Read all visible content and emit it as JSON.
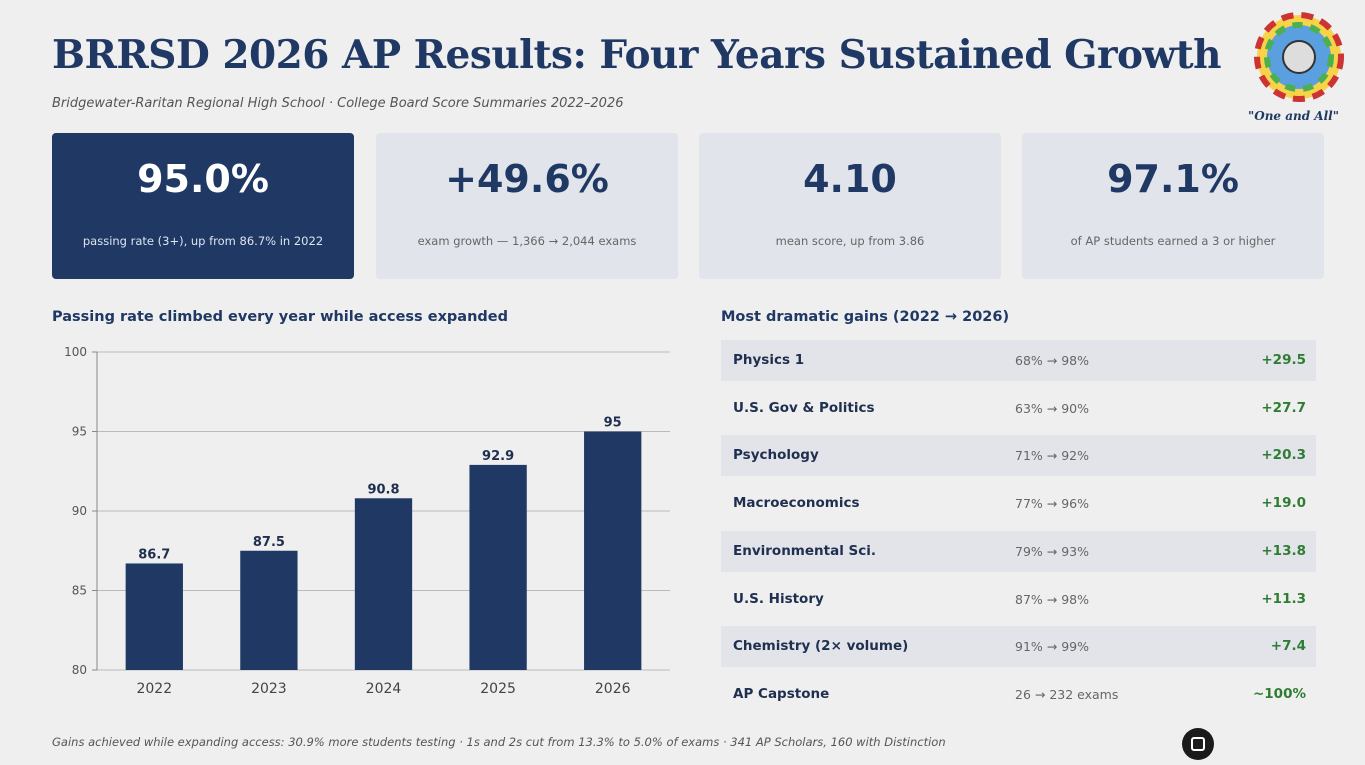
{
  "header": {
    "title": "BRRSD 2026 AP Results: Four Years Sustained Growth",
    "subtitle": "Bridgewater-Raritan Regional High School · College Board Score Summaries 2022–2026",
    "motto": "\"One and All\""
  },
  "cards": [
    {
      "value": "95.0%",
      "label": "passing rate (3+), up from 86.7% in 2022"
    },
    {
      "value": "+49.6%",
      "label": "exam growth — 1,366 → 2,044 exams"
    },
    {
      "value": "4.10",
      "label": "mean score, up from 3.86"
    },
    {
      "value": "97.1%",
      "label": "of AP students earned a 3 or higher"
    }
  ],
  "chart_data": {
    "type": "bar",
    "title": "Passing rate climbed every year while access expanded",
    "categories": [
      "2022",
      "2023",
      "2024",
      "2025",
      "2026"
    ],
    "values": [
      86.7,
      87.5,
      90.8,
      92.9,
      95
    ],
    "color": "#1f3864",
    "ylim": [
      80,
      100
    ],
    "yticks": [
      80,
      85,
      90,
      95,
      100
    ],
    "grid": true
  },
  "table": {
    "title": "Most dramatic gains (2022 → 2026)",
    "rows": [
      [
        "Physics 1",
        "68% → 98%",
        "+29.5"
      ],
      [
        "U.S. Gov & Politics",
        "63% → 90%",
        "+27.7"
      ],
      [
        "Psychology",
        "71% → 92%",
        "+20.3"
      ],
      [
        "Macroeconomics",
        "77% → 96%",
        "+19.0"
      ],
      [
        "Environmental Sci.",
        "79% → 93%",
        "+13.8"
      ],
      [
        "U.S. History",
        "87% → 98%",
        "+11.3"
      ],
      [
        "Chemistry (2× volume)",
        "91% → 99%",
        "+7.4"
      ],
      [
        "AP Capstone",
        "26 → 232 exams",
        "~100%"
      ]
    ]
  },
  "footer": "Gains achieved while expanding access: 30.9% more students testing · 1s and 2s cut from 13.3% to 5.0% of exams · 341 AP Scholars, 160 with Distinction"
}
